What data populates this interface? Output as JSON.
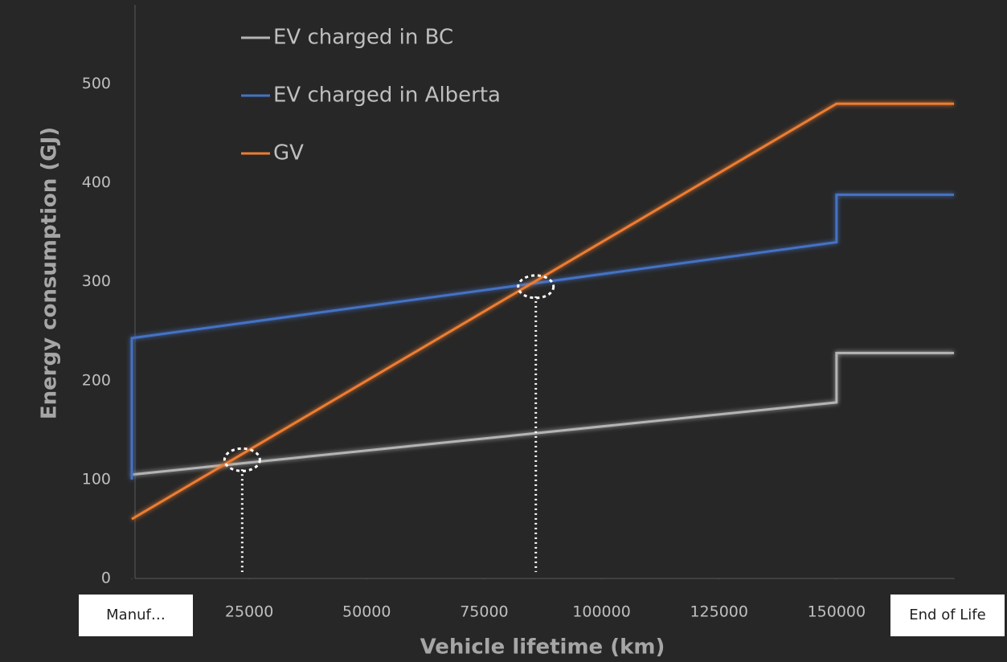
{
  "chart_data": {
    "type": "line",
    "ylabel": "Energy consumption (GJ)",
    "xlabel": "Vehicle lifetime (km)",
    "xlim": [
      0,
      175000
    ],
    "ylim": [
      0,
      580
    ],
    "xticks": [
      {
        "value": 0,
        "label": "Manuf…"
      },
      25000,
      50000,
      75000,
      100000,
      125000,
      150000,
      {
        "value": 175000,
        "label": "End of Life"
      }
    ],
    "yticks": [
      0,
      100,
      200,
      300,
      400,
      500
    ],
    "legend": "top-left",
    "series": [
      {
        "name": "EV charged in BC",
        "color": "#b4b4b4",
        "x": [
          0,
          150000,
          150000,
          175000
        ],
        "values": [
          105,
          178,
          228,
          228
        ]
      },
      {
        "name": "EV charged in Alberta",
        "color": "#4472c4",
        "x": [
          0,
          0,
          150000,
          150000,
          175000
        ],
        "values": [
          100,
          243,
          340,
          388,
          388
        ]
      },
      {
        "name": "GV",
        "color": "#ed7d31",
        "x": [
          0,
          150000,
          175000
        ],
        "values": [
          60,
          480,
          480
        ]
      }
    ],
    "markers": [
      {
        "x": 23500,
        "y": 120
      },
      {
        "x": 86000,
        "y": 295
      }
    ]
  }
}
